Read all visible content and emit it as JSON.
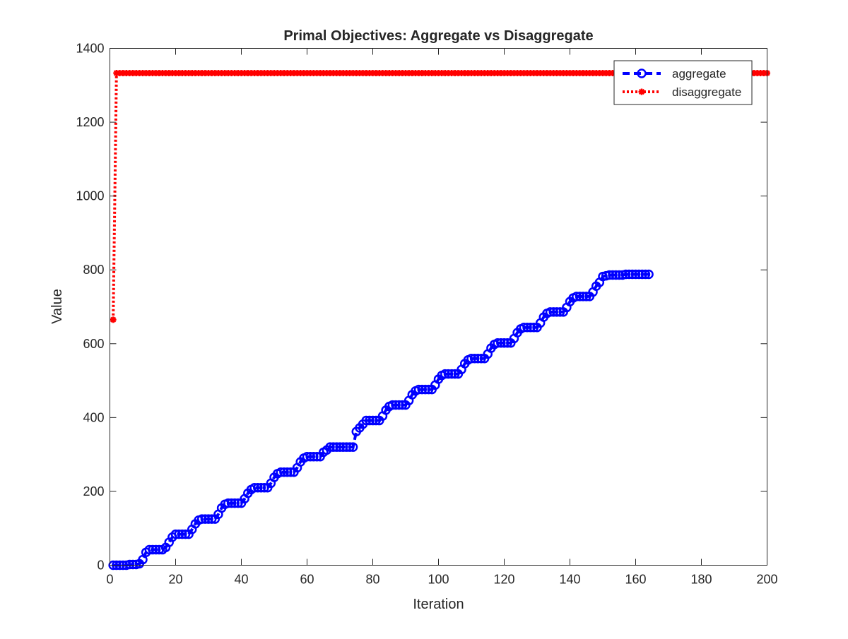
{
  "chart_data": {
    "type": "line",
    "title": "Primal Objectives: Aggregate vs Disaggregate",
    "xlabel": "Iteration",
    "ylabel": "Value",
    "xlim": [
      0,
      200
    ],
    "ylim": [
      0,
      1400
    ],
    "xticks": [
      0,
      20,
      40,
      60,
      80,
      100,
      120,
      140,
      160,
      180,
      200
    ],
    "yticks": [
      0,
      200,
      400,
      600,
      800,
      1000,
      1200,
      1400
    ],
    "xtick_labels": [
      "0",
      "20",
      "40",
      "60",
      "80",
      "100",
      "120",
      "140",
      "160",
      "180",
      "200"
    ],
    "ytick_labels": [
      "0",
      "200",
      "400",
      "600",
      "800",
      "1000",
      "1200",
      "1400"
    ],
    "grid": false,
    "legend_position": "top-right",
    "series": [
      {
        "name": "aggregate",
        "color": "#0000ff",
        "line_style": "dashed",
        "marker": "circle",
        "x": [
          1,
          2,
          3,
          4,
          5,
          6,
          7,
          8,
          9,
          10,
          11,
          12,
          13,
          14,
          15,
          16,
          17,
          18,
          19,
          20,
          21,
          22,
          23,
          24,
          25,
          26,
          27,
          28,
          29,
          30,
          31,
          32,
          33,
          34,
          35,
          36,
          37,
          38,
          39,
          40,
          41,
          42,
          43,
          44,
          45,
          46,
          47,
          48,
          49,
          50,
          51,
          52,
          53,
          54,
          55,
          56,
          57,
          58,
          59,
          60,
          61,
          62,
          63,
          64,
          65,
          66,
          67,
          68,
          69,
          70,
          71,
          72,
          73,
          74,
          75,
          76,
          77,
          78,
          79,
          80,
          81,
          82,
          83,
          84,
          85,
          86,
          87,
          88,
          89,
          90,
          91,
          92,
          93,
          94,
          95,
          96,
          97,
          98,
          99,
          100,
          101,
          102,
          103,
          104,
          105,
          106,
          107,
          108,
          109,
          110,
          111,
          112,
          113,
          114,
          115,
          116,
          117,
          118,
          119,
          120,
          121,
          122,
          123,
          124,
          125,
          126,
          127,
          128,
          129,
          130,
          131,
          132,
          133,
          134,
          135,
          136,
          137,
          138,
          139,
          140,
          141,
          142,
          143,
          144,
          145,
          146,
          147,
          148,
          149,
          150,
          151,
          152,
          153,
          154,
          155,
          156,
          157,
          158,
          159,
          160,
          161,
          162,
          163,
          164
        ],
        "values": [
          0,
          0,
          0,
          0,
          0,
          2,
          2,
          2,
          4,
          15,
          35,
          42,
          42,
          42,
          42,
          42,
          48,
          62,
          76,
          84,
          84,
          84,
          84,
          84,
          97,
          112,
          122,
          125,
          125,
          125,
          125,
          125,
          138,
          155,
          165,
          168,
          168,
          168,
          168,
          168,
          180,
          195,
          205,
          210,
          210,
          210,
          210,
          210,
          222,
          238,
          248,
          252,
          252,
          252,
          252,
          252,
          264,
          280,
          290,
          294,
          294,
          294,
          294,
          294,
          306,
          312,
          320,
          320,
          320,
          320,
          320,
          320,
          320,
          320,
          362,
          372,
          382,
          392,
          392,
          392,
          392,
          392,
          404,
          420,
          430,
          434,
          434,
          434,
          434,
          434,
          446,
          462,
          472,
          476,
          476,
          476,
          476,
          476,
          488,
          504,
          514,
          518,
          518,
          518,
          518,
          518,
          530,
          546,
          556,
          560,
          560,
          560,
          560,
          560,
          572,
          588,
          598,
          602,
          602,
          602,
          602,
          602,
          614,
          630,
          640,
          644,
          644,
          644,
          644,
          644,
          656,
          672,
          682,
          686,
          686,
          686,
          686,
          686,
          698,
          714,
          724,
          728,
          728,
          728,
          728,
          728,
          740,
          756,
          766,
          782,
          784,
          786,
          786,
          786,
          786,
          786,
          788,
          788,
          788,
          788,
          788,
          788,
          788,
          788
        ]
      },
      {
        "name": "disaggregate",
        "color": "#ff0000",
        "line_style": "dotted",
        "marker": "asterisk",
        "x_range": [
          1,
          200
        ],
        "first_value": 665,
        "steady_value": 1333
      }
    ]
  }
}
